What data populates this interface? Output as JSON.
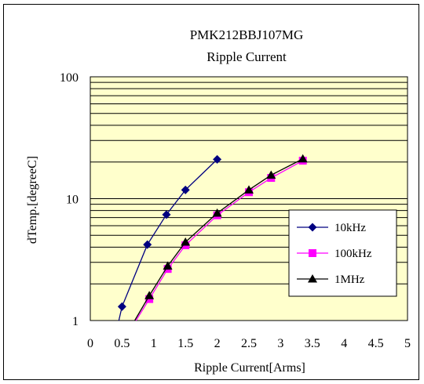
{
  "chart_data": {
    "type": "line",
    "title": "PMK212BBJ107MG",
    "subtitle": "Ripple Current",
    "xlabel": "Ripple Current[Arms]",
    "ylabel": "dTemp.[degreeC]",
    "xlim": [
      0,
      5
    ],
    "ylim": [
      1,
      100
    ],
    "yscale": "log",
    "xticks": [
      "0",
      "0.5",
      "1",
      "1.5",
      "2",
      "2.5",
      "3",
      "3.5",
      "4",
      "4.5",
      "5"
    ],
    "yticks": [
      "1",
      "10",
      "100"
    ],
    "grid": true,
    "plot_background": "#ffffcc",
    "legend_position": "right",
    "series": [
      {
        "name": "10kHz",
        "color": "#000080",
        "marker": "diamond",
        "x": [
          0.45,
          0.5,
          0.9,
          1.2,
          1.5,
          2.0
        ],
        "y": [
          1.0,
          1.3,
          4.2,
          7.4,
          11.8,
          21.0
        ]
      },
      {
        "name": "100kHz",
        "color": "#ff00ff",
        "marker": "square",
        "x": [
          0.72,
          0.93,
          1.22,
          1.5,
          2.0,
          2.5,
          2.85,
          3.35
        ],
        "y": [
          1.0,
          1.5,
          2.65,
          4.15,
          7.3,
          11.3,
          14.8,
          20.5
        ]
      },
      {
        "name": "1MHz",
        "color": "#000000",
        "marker": "triangle",
        "x": [
          0.7,
          0.93,
          1.22,
          1.5,
          2.0,
          2.5,
          2.85,
          3.35
        ],
        "y": [
          1.0,
          1.6,
          2.8,
          4.4,
          7.6,
          11.8,
          15.6,
          21.2
        ]
      }
    ]
  }
}
